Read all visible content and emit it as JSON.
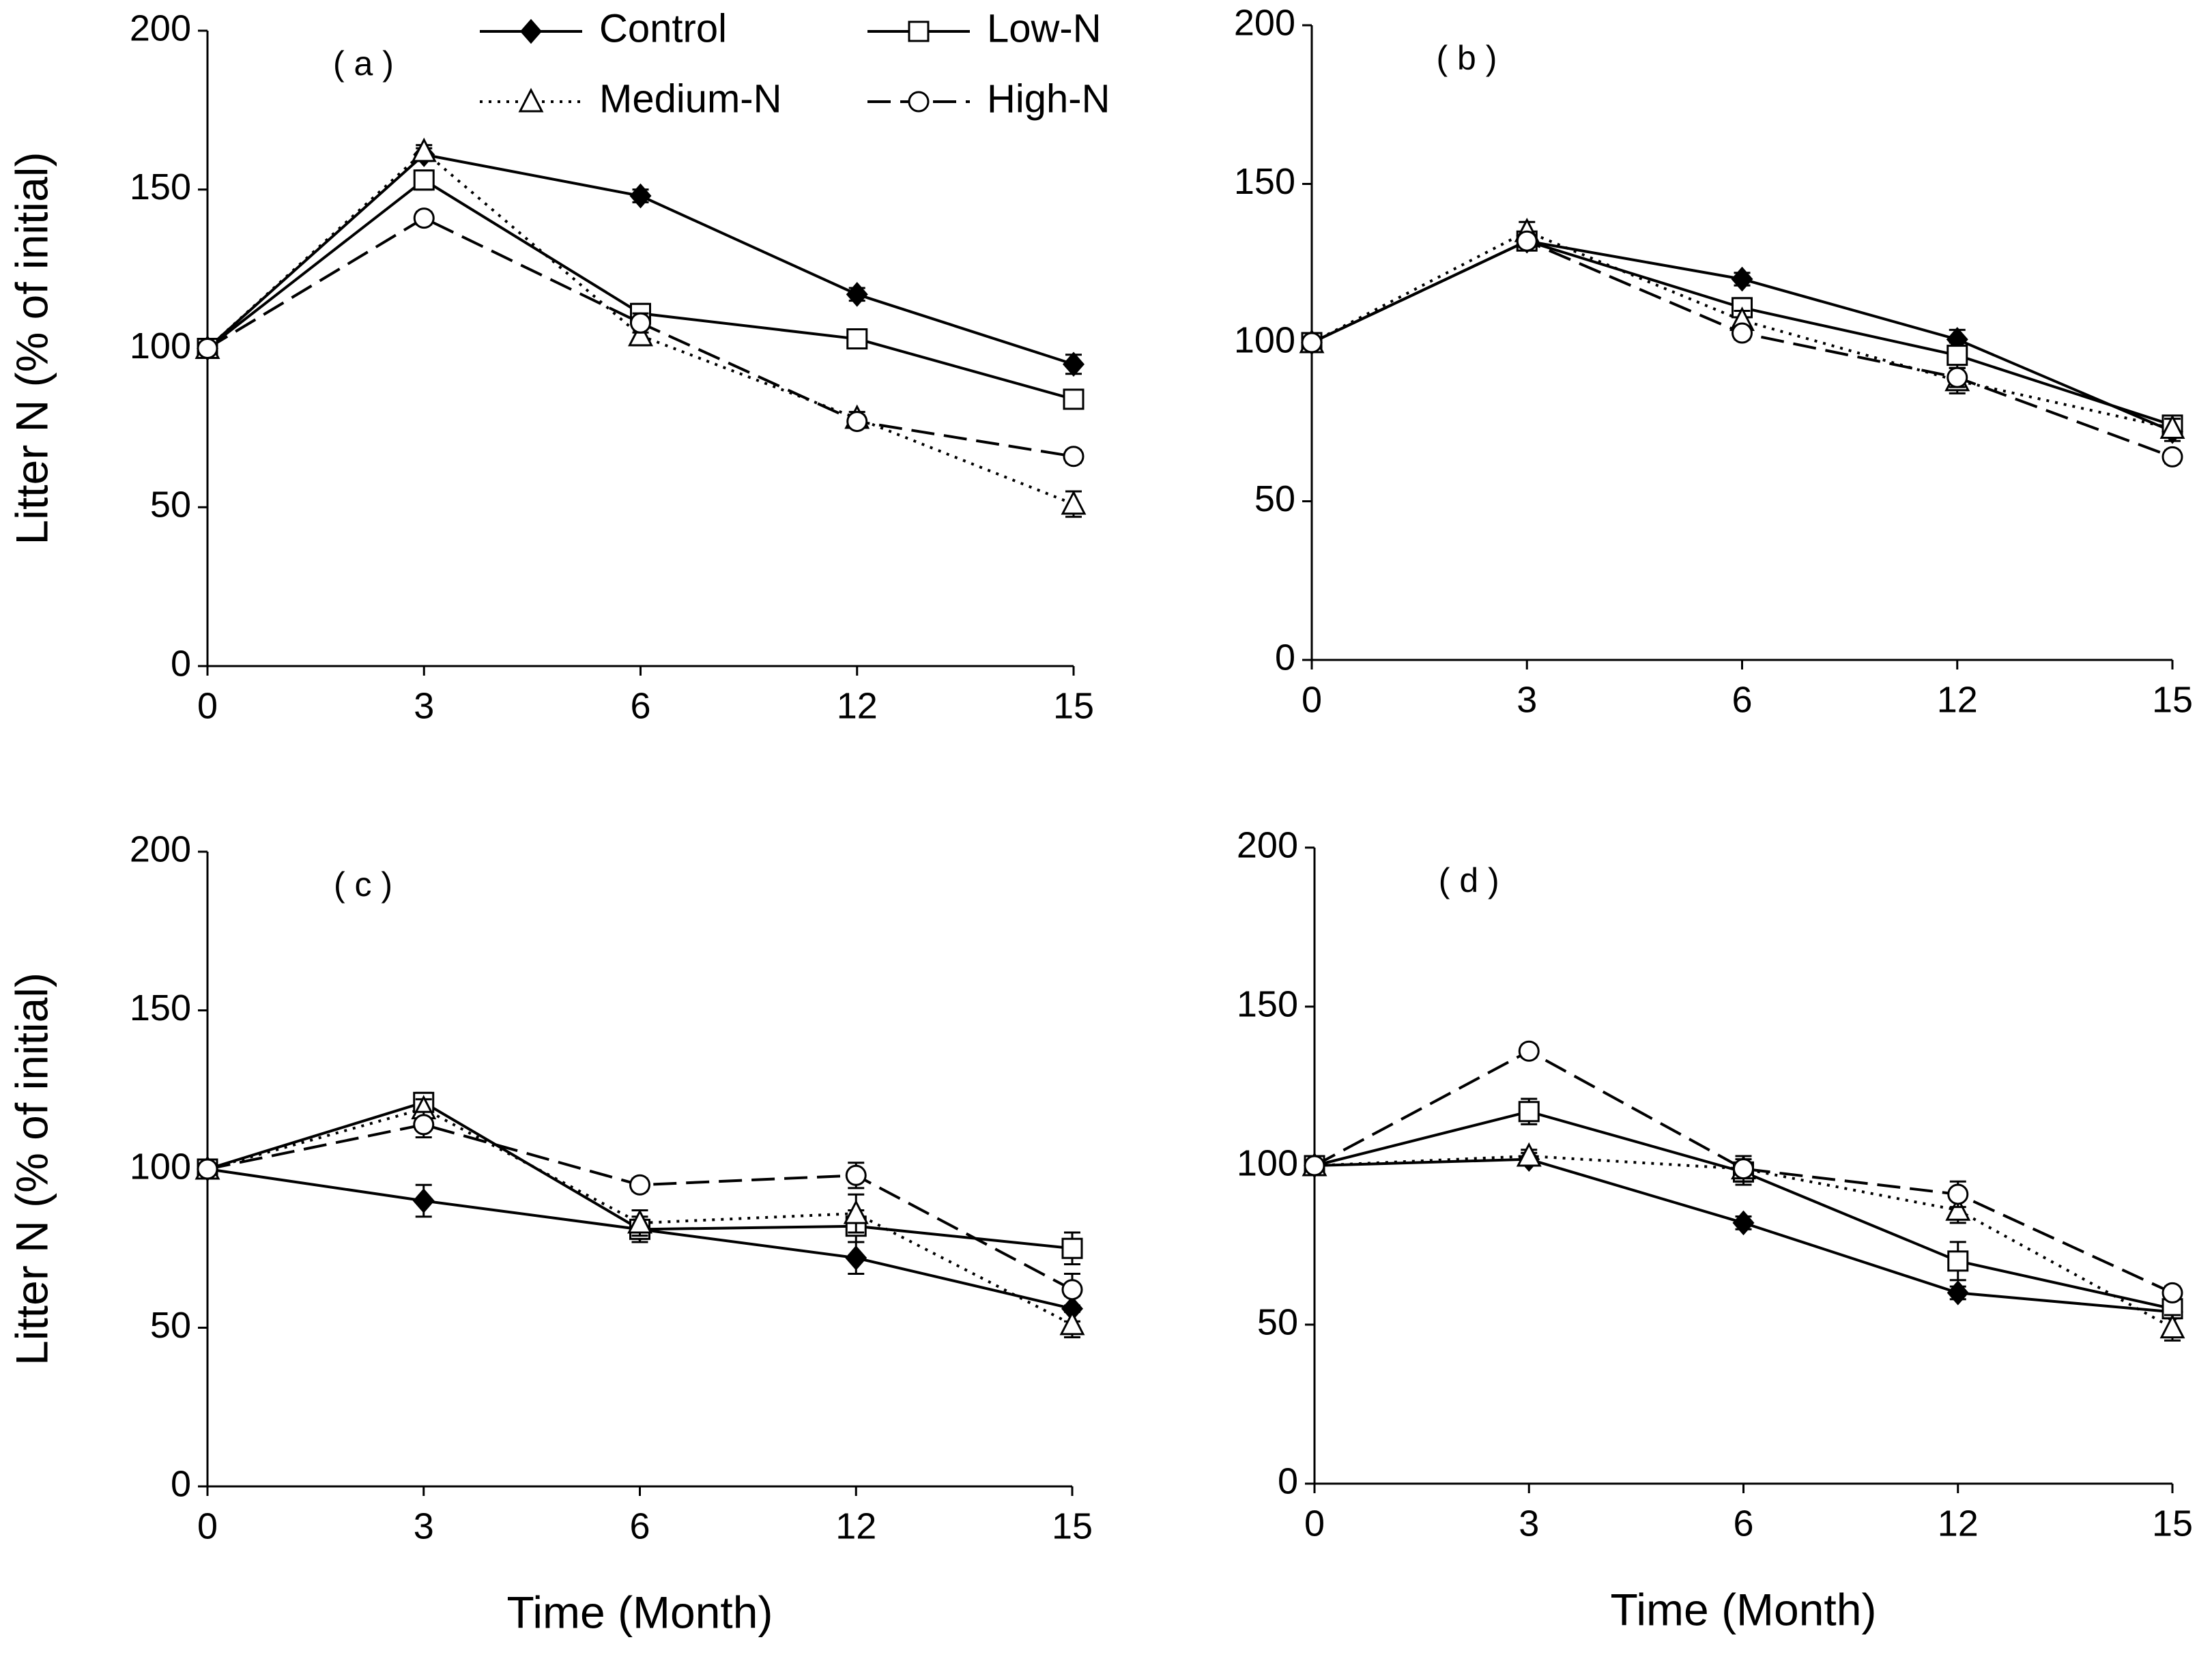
{
  "chart_data": [
    {
      "type": "line",
      "title": "( a )",
      "categories": [
        "0",
        "3",
        "6",
        "12",
        "15"
      ],
      "ylim": [
        0,
        200
      ],
      "yticks": [
        0,
        50,
        100,
        150,
        200
      ],
      "y_label": "Litter N (% of initial)",
      "legend": "upper center",
      "series": [
        {
          "name": "Control",
          "color": "#000000",
          "marker": "diamond",
          "linestyle": "solid",
          "values": [
            100,
            161,
            148,
            117,
            95
          ],
          "errors": [
            1,
            2,
            2,
            2,
            3
          ]
        },
        {
          "name": "Low-N",
          "color": "#000000",
          "marker": "square",
          "linestyle": "solid",
          "values": [
            100,
            153,
            111,
            103,
            84
          ],
          "errors": [
            1,
            3,
            3,
            2,
            3
          ]
        },
        {
          "name": "Medium-N",
          "color": "#000000",
          "marker": "triangle",
          "linestyle": "dotted",
          "values": [
            100,
            162,
            104,
            78,
            51
          ],
          "errors": [
            1,
            2,
            3,
            2,
            4
          ]
        },
        {
          "name": "High-N",
          "color": "#000000",
          "marker": "circle",
          "linestyle": "dashed",
          "values": [
            100,
            141,
            108,
            77,
            66
          ],
          "errors": [
            1,
            2,
            3,
            2,
            2
          ]
        }
      ]
    },
    {
      "type": "line",
      "title": "( b )",
      "categories": [
        "0",
        "3",
        "6",
        "12",
        "15"
      ],
      "ylim": [
        0,
        200
      ],
      "yticks": [
        0,
        50,
        100,
        150,
        200
      ],
      "series": [
        {
          "color": "#000000",
          "marker": "diamond",
          "linestyle": "solid",
          "values": [
            100,
            132,
            120,
            101,
            72
          ],
          "errors": [
            1,
            2,
            2,
            3,
            3
          ]
        },
        {
          "color": "#000000",
          "marker": "square",
          "linestyle": "solid",
          "values": [
            100,
            132,
            111,
            96,
            74
          ],
          "errors": [
            1,
            2,
            3,
            4,
            3
          ]
        },
        {
          "color": "#000000",
          "marker": "triangle",
          "linestyle": "dotted",
          "values": [
            100,
            135,
            107,
            88,
            73
          ],
          "errors": [
            1,
            3,
            3,
            4,
            3
          ]
        },
        {
          "color": "#000000",
          "marker": "circle",
          "linestyle": "dashed",
          "values": [
            100,
            132,
            103,
            89,
            64
          ],
          "errors": [
            1,
            2,
            2,
            3,
            2
          ]
        }
      ]
    },
    {
      "type": "line",
      "title": "( c )",
      "categories": [
        "0",
        "3",
        "6",
        "12",
        "15"
      ],
      "ylim": [
        0,
        200
      ],
      "yticks": [
        0,
        50,
        100,
        150,
        200
      ],
      "y_label": "Litter N (% of initial)",
      "x_label": "Time (Month)",
      "series": [
        {
          "color": "#000000",
          "marker": "diamond",
          "linestyle": "solid",
          "values": [
            100,
            90,
            81,
            72,
            56
          ],
          "errors": [
            1,
            5,
            3,
            5,
            4
          ]
        },
        {
          "color": "#000000",
          "marker": "square",
          "linestyle": "solid",
          "values": [
            100,
            121,
            81,
            82,
            75
          ],
          "errors": [
            1,
            3,
            4,
            5,
            5
          ]
        },
        {
          "color": "#000000",
          "marker": "triangle",
          "linestyle": "dotted",
          "values": [
            100,
            119,
            83,
            86,
            51
          ],
          "errors": [
            1,
            3,
            4,
            6,
            4
          ]
        },
        {
          "color": "#000000",
          "marker": "circle",
          "linestyle": "dashed",
          "values": [
            100,
            114,
            95,
            98,
            62
          ],
          "errors": [
            1,
            4,
            2,
            4,
            5
          ]
        }
      ]
    },
    {
      "type": "line",
      "title": "( d )",
      "categories": [
        "0",
        "3",
        "6",
        "12",
        "15"
      ],
      "ylim": [
        0,
        200
      ],
      "yticks": [
        0,
        50,
        100,
        150,
        200
      ],
      "x_label": "Time (Month)",
      "series": [
        {
          "color": "#000000",
          "marker": "diamond",
          "linestyle": "solid",
          "values": [
            100,
            102,
            82,
            60,
            54
          ],
          "errors": [
            1,
            2,
            2,
            2,
            2
          ]
        },
        {
          "color": "#000000",
          "marker": "square",
          "linestyle": "solid",
          "values": [
            100,
            117,
            98,
            70,
            55
          ],
          "errors": [
            1,
            4,
            4,
            6,
            3
          ]
        },
        {
          "color": "#000000",
          "marker": "triangle",
          "linestyle": "dotted",
          "values": [
            100,
            103,
            99,
            86,
            49
          ],
          "errors": [
            1,
            2,
            4,
            4,
            4
          ]
        },
        {
          "color": "#000000",
          "marker": "circle",
          "linestyle": "dashed",
          "values": [
            100,
            136,
            99,
            91,
            60
          ],
          "errors": [
            1,
            2,
            4,
            4,
            2
          ]
        }
      ]
    }
  ]
}
